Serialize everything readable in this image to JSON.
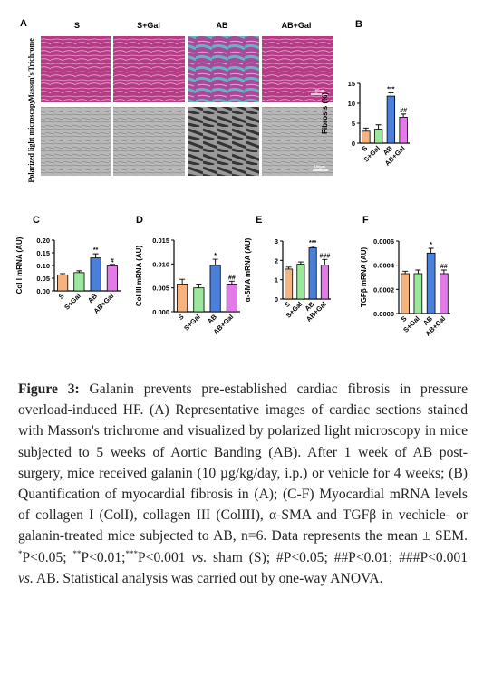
{
  "figure": {
    "panel_a": "A",
    "columns": [
      "S",
      "S+Gal",
      "AB",
      "AB+Gal"
    ],
    "rows": [
      "Masson's Trichrome",
      "Polarized light microscopy"
    ],
    "scale_bars": [
      "100μm",
      "100μm"
    ]
  },
  "chart_data": [
    {
      "type": "bar",
      "panel": "B",
      "y_label": "Fibrosis (%)",
      "categories": [
        "S",
        "S+Gal",
        "AB",
        "AB+Gal"
      ],
      "values": [
        3,
        3.5,
        11.8,
        6.5
      ],
      "errors": [
        0.8,
        1.1,
        0.8,
        0.8
      ],
      "annotations": [
        null,
        null,
        "***",
        "##"
      ],
      "colors": [
        "#f6b37e",
        "#9be79b",
        "#4a7fdc",
        "#e27ae8"
      ],
      "ylim": [
        0,
        15
      ],
      "yticks": [
        0,
        5,
        10,
        15
      ]
    },
    {
      "type": "bar",
      "panel": "C",
      "y_label": "Col I mRNA (AU)",
      "categories": [
        "S",
        "S+Gal",
        "AB",
        "AB+Gal"
      ],
      "values": [
        0.063,
        0.072,
        0.13,
        0.098
      ],
      "errors": [
        0.005,
        0.007,
        0.016,
        0.006
      ],
      "annotations": [
        null,
        null,
        "**",
        "#"
      ],
      "colors": [
        "#f6b37e",
        "#9be79b",
        "#4a7fdc",
        "#e27ae8"
      ],
      "ylim": [
        0,
        0.2
      ],
      "yticks": [
        {
          "value": 0,
          "label": "0.00"
        },
        {
          "value": 0.05,
          "label": "0.05"
        },
        {
          "value": 0.1,
          "label": "0.10"
        },
        {
          "value": 0.15,
          "label": "0.15"
        },
        {
          "value": 0.2,
          "label": "0.20"
        }
      ]
    },
    {
      "type": "bar",
      "panel": "D",
      "y_label": "Col III mRNA (AU)",
      "categories": [
        "S",
        "S+Gal",
        "AB",
        "AB+Gal"
      ],
      "values": [
        0.0058,
        0.005,
        0.0097,
        0.0058
      ],
      "errors": [
        0.001,
        0.0008,
        0.0013,
        0.0006
      ],
      "annotations": [
        null,
        null,
        "*",
        "##"
      ],
      "colors": [
        "#f6b37e",
        "#9be79b",
        "#4a7fdc",
        "#e27ae8"
      ],
      "ylim": [
        0,
        0.015
      ],
      "yticks": [
        {
          "value": 0,
          "label": "0.000"
        },
        {
          "value": 0.005,
          "label": "0.005"
        },
        {
          "value": 0.01,
          "label": "0.010"
        },
        {
          "value": 0.015,
          "label": "0.015"
        }
      ]
    },
    {
      "type": "bar",
      "panel": "E",
      "y_label": "α-SMA mRNA (AU)",
      "categories": [
        "S",
        "S+Gal",
        "AB",
        "AB+Gal"
      ],
      "values": [
        1.55,
        1.8,
        2.65,
        1.75
      ],
      "errors": [
        0.1,
        0.12,
        0.08,
        0.3
      ],
      "annotations": [
        null,
        null,
        "***",
        "###"
      ],
      "colors": [
        "#f6b37e",
        "#9be79b",
        "#4a7fdc",
        "#e27ae8"
      ],
      "ylim": [
        0,
        3
      ],
      "yticks": [
        0,
        1,
        2,
        3
      ]
    },
    {
      "type": "bar",
      "panel": "F",
      "y_label": "TGFβ mRNA (AU)",
      "categories": [
        "S",
        "S+Gal",
        "AB",
        "AB+Gal"
      ],
      "values": [
        0.00033,
        0.00033,
        0.0005,
        0.00033
      ],
      "errors": [
        2e-05,
        3e-05,
        4e-05,
        3e-05
      ],
      "annotations": [
        null,
        null,
        "*",
        "##"
      ],
      "colors": [
        "#f6b37e",
        "#9be79b",
        "#4a7fdc",
        "#e27ae8"
      ],
      "ylim": [
        0,
        0.0006
      ],
      "yticks": [
        {
          "value": 0,
          "label": "0.0000"
        },
        {
          "value": 0.0002,
          "label": "0.0002"
        },
        {
          "value": 0.0004,
          "label": "0.0004"
        },
        {
          "value": 0.0006,
          "label": "0.0006"
        }
      ]
    }
  ],
  "caption": {
    "label": "Figure 3:",
    "parts": [
      " Galanin prevents pre-established cardiac fibrosis in pressure overload-induced HF. (A) Representative images of cardiac sections stained with Masson's trichrome and visualized by polarized light microscopy in mice subjected to 5 weeks of Aortic Banding (AB). After 1 week of AB post-surgery, mice received galanin (10 µg/kg/day, i.p.) or vehicle for 4 weeks; (B) Quantification of myocardial fibrosis in (A); (C-F) Myocardial mRNA levels of collagen I (ColI), collagen III (ColIII), α-SMA and TGFβ in vechicle- or galanin-treated mice subjected to AB, n=6. Data represents the mean ± SEM. ",
      "*",
      "P<0.05; ",
      "**",
      "P<0.01;",
      "***",
      "P<0.001 ",
      "vs.",
      " sham (S); #P<0.05; ##P<0.01; ###P<0.001 ",
      "vs.",
      " AB. Statistical analysis was carried out by one-way ANOVA."
    ]
  }
}
